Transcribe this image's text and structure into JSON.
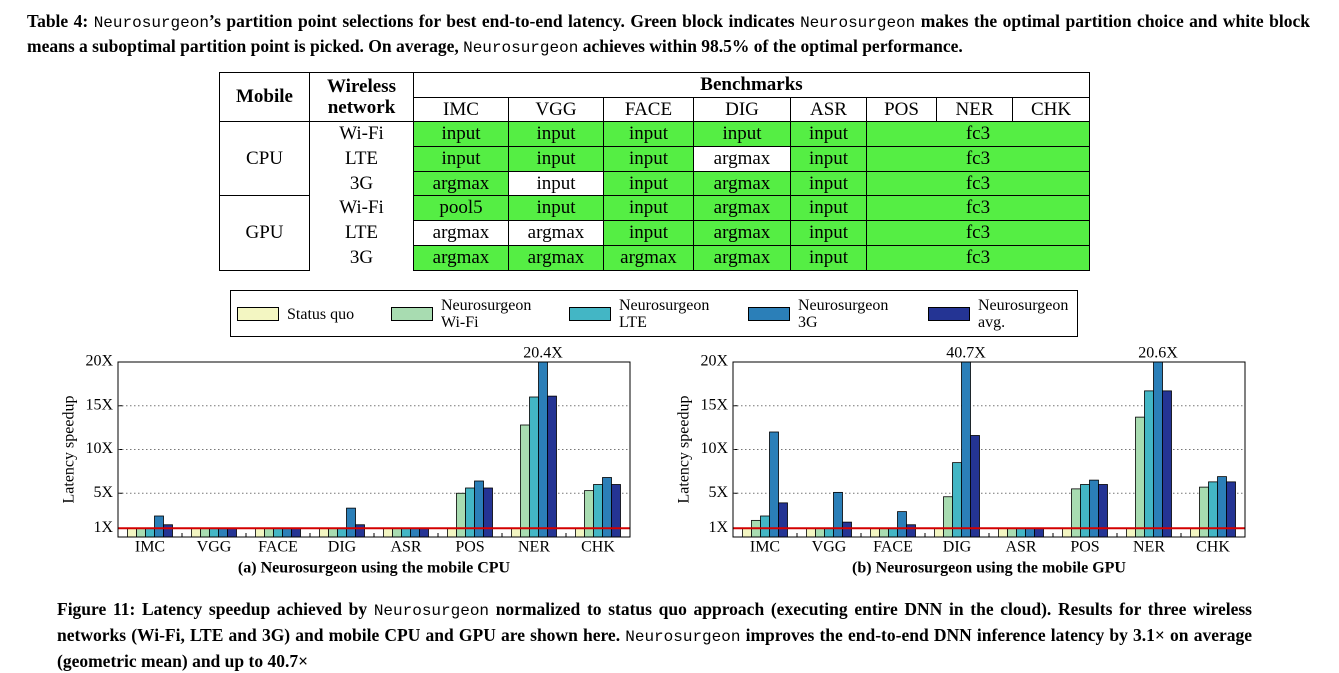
{
  "table_caption": [
    "Table 4: ",
    "Neurosurgeon",
    "’s partition point selections for best end-to-end latency. Green block indicates ",
    "Neurosurgeon",
    " makes the optimal partition choice and white block means a suboptimal partition point is picked. On average, ",
    "Neurosurgeon",
    " achieves within 98.5% of the optimal performance."
  ],
  "table": {
    "header": {
      "mobile": "Mobile",
      "network": "Wireless network",
      "benchmarks": "Benchmarks",
      "columns": [
        "IMC",
        "VGG",
        "FACE",
        "DIG",
        "ASR",
        "POS",
        "NER",
        "CHK"
      ]
    },
    "optimal_color": "#55ee44",
    "groups": [
      {
        "mobile": "CPU",
        "rows": [
          {
            "network": "Wi-Fi",
            "cells": [
              "input",
              "input",
              "input",
              "input",
              "input",
              "fc3"
            ],
            "optimal": [
              true,
              true,
              true,
              true,
              true,
              true
            ]
          },
          {
            "network": "LTE",
            "cells": [
              "input",
              "input",
              "input",
              "argmax",
              "input",
              "fc3"
            ],
            "optimal": [
              true,
              true,
              true,
              false,
              true,
              true
            ]
          },
          {
            "network": "3G",
            "cells": [
              "argmax",
              "input",
              "input",
              "argmax",
              "input",
              "fc3"
            ],
            "optimal": [
              true,
              false,
              true,
              true,
              true,
              true
            ]
          }
        ]
      },
      {
        "mobile": "GPU",
        "rows": [
          {
            "network": "Wi-Fi",
            "cells": [
              "pool5",
              "input",
              "input",
              "argmax",
              "input",
              "fc3"
            ],
            "optimal": [
              true,
              true,
              true,
              true,
              true,
              true
            ]
          },
          {
            "network": "LTE",
            "cells": [
              "argmax",
              "argmax",
              "input",
              "argmax",
              "input",
              "fc3"
            ],
            "optimal": [
              false,
              false,
              true,
              true,
              true,
              true
            ]
          },
          {
            "network": "3G",
            "cells": [
              "argmax",
              "argmax",
              "argmax",
              "argmax",
              "input",
              "fc3"
            ],
            "optimal": [
              true,
              true,
              true,
              true,
              true,
              true
            ]
          }
        ]
      }
    ]
  },
  "chart_data": [
    {
      "type": "bar",
      "title": "(a) Neurosurgeon using the mobile CPU",
      "y_label": "Latency speedup",
      "categories": [
        "IMC",
        "VGG",
        "FACE",
        "DIG",
        "ASR",
        "POS",
        "NER",
        "CHK"
      ],
      "ylim": [
        0,
        20
      ],
      "yticks": [
        {
          "value": 1,
          "label": "1X"
        },
        {
          "value": 5,
          "label": "5X"
        },
        {
          "value": 10,
          "label": "10X"
        },
        {
          "value": 15,
          "label": "15X"
        },
        {
          "value": 20,
          "label": "20X"
        }
      ],
      "grid": true,
      "reference_line": {
        "value": 1,
        "color": "#d40000"
      },
      "series": [
        {
          "name": "Status quo",
          "color": "#f3f6c2",
          "values": [
            1,
            1,
            1,
            1,
            1,
            1,
            1,
            1
          ]
        },
        {
          "name": "Neurosurgeon Wi-Fi",
          "color": "#a8dcb1",
          "values": [
            1,
            1,
            1,
            1,
            1,
            5.0,
            12.8,
            5.3
          ]
        },
        {
          "name": "Neurosurgeon LTE",
          "color": "#43b6c5",
          "values": [
            1,
            1,
            1,
            1,
            1,
            5.6,
            16.0,
            6.0
          ]
        },
        {
          "name": "Neurosurgeon 3G",
          "color": "#2b7fb8",
          "values": [
            2.4,
            1,
            1,
            3.3,
            1,
            6.4,
            20.4,
            6.8
          ],
          "value_labels": [
            null,
            null,
            null,
            null,
            null,
            null,
            "20.4X",
            null
          ]
        },
        {
          "name": "Neurosurgeon avg.",
          "color": "#243494",
          "values": [
            1.4,
            1,
            1,
            1.4,
            1,
            5.6,
            16.1,
            6.0
          ]
        }
      ]
    },
    {
      "type": "bar",
      "title": "(b) Neurosurgeon using the mobile GPU",
      "y_label": "Latency speedup",
      "categories": [
        "IMC",
        "VGG",
        "FACE",
        "DIG",
        "ASR",
        "POS",
        "NER",
        "CHK"
      ],
      "ylim": [
        0,
        20
      ],
      "yticks": [
        {
          "value": 1,
          "label": "1X"
        },
        {
          "value": 5,
          "label": "5X"
        },
        {
          "value": 10,
          "label": "10X"
        },
        {
          "value": 15,
          "label": "15X"
        },
        {
          "value": 20,
          "label": "20X"
        }
      ],
      "grid": true,
      "reference_line": {
        "value": 1,
        "color": "#d40000"
      },
      "series": [
        {
          "name": "Status quo",
          "color": "#f3f6c2",
          "values": [
            1,
            1,
            1,
            1,
            1,
            1,
            1,
            1
          ]
        },
        {
          "name": "Neurosurgeon Wi-Fi",
          "color": "#a8dcb1",
          "values": [
            1.9,
            1,
            1,
            4.6,
            1,
            5.5,
            13.7,
            5.7
          ]
        },
        {
          "name": "Neurosurgeon LTE",
          "color": "#43b6c5",
          "values": [
            2.4,
            1,
            1,
            8.5,
            1,
            6.0,
            16.7,
            6.3
          ]
        },
        {
          "name": "Neurosurgeon 3G",
          "color": "#2b7fb8",
          "values": [
            12.0,
            5.1,
            2.9,
            40.7,
            1,
            6.5,
            20.6,
            6.9
          ],
          "value_labels": [
            null,
            null,
            null,
            "40.7X",
            null,
            null,
            "20.6X",
            null
          ]
        },
        {
          "name": "Neurosurgeon avg.",
          "color": "#243494",
          "values": [
            3.9,
            1.7,
            1.4,
            11.6,
            1,
            6.0,
            16.7,
            6.3
          ]
        }
      ]
    }
  ],
  "figure_caption": [
    "Figure 11: Latency speedup achieved by ",
    "Neurosurgeon",
    " normalized to status quo approach (executing entire DNN in the cloud). Results for three wireless networks (Wi-Fi, LTE and 3G) and mobile CPU and GPU are shown here. ",
    "Neurosurgeon",
    " improves the end-to-end DNN inference latency by 3.1× on average (geometric mean) and up to 40.7×"
  ]
}
